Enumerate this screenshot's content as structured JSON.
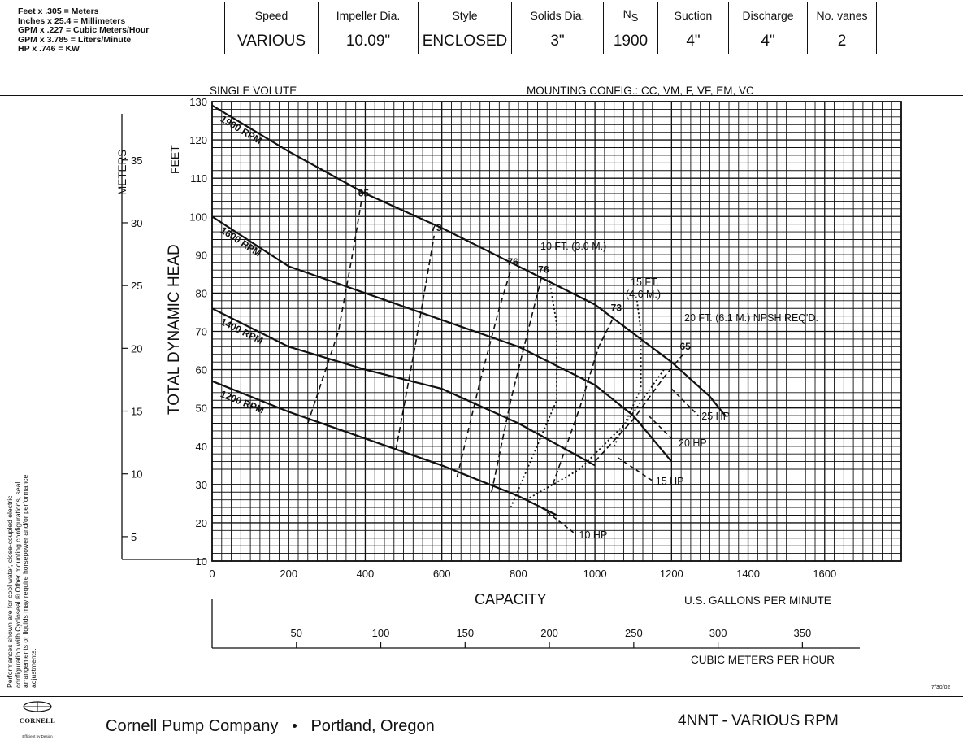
{
  "conversions": [
    "Feet x .305 = Meters",
    "Inches x 25.4 = Millimeters",
    "GPM x .227 = Cubic Meters/Hour",
    "GPM x 3.785 = Liters/Minute",
    "HP x .746 = KW"
  ],
  "spec_table": {
    "headers": [
      "Speed",
      "Impeller Dia.",
      "Style",
      "Solids Dia.",
      "N",
      "Suction",
      "Discharge",
      "No. vanes"
    ],
    "ns_subscript": "S",
    "values": [
      "VARIOUS",
      "10.09\"",
      "ENCLOSED",
      "3\"",
      "1900",
      "4\"",
      "4\"",
      "2"
    ]
  },
  "disclaimer": "Performances shown are for cool water, close-coupled electric configuration with Cycloseal ® Other mounting configurations, seal arrangements or liquids may require horsepower and/or performance adjustments.",
  "date": "7/30/02",
  "footer": {
    "logo_name": "CORNELL",
    "logo_tagline": "Efficient by Design",
    "company": "Cornell Pump Company",
    "location": "Portland, Oregon",
    "model": "4NNT - VARIOUS RPM"
  },
  "chart_data": {
    "type": "line",
    "title_left": "SINGLE VOLUTE",
    "title_right": "MOUNTING CONFIG.:  CC,  VM,  F,  VF,  EM,  VC",
    "xlabel": "CAPACITY",
    "x_units": "U.S. GALLONS PER MINUTE",
    "x2_units": "CUBIC METERS PER HOUR",
    "ylabel": "TOTAL DYNAMIC HEAD",
    "y_units": "FEET",
    "y2_units": "METERS",
    "xlim": [
      0,
      1800
    ],
    "ylim": [
      10,
      130
    ],
    "x_ticks": [
      0,
      200,
      400,
      600,
      800,
      1000,
      1200,
      1400,
      1600
    ],
    "y_ticks": [
      10,
      20,
      30,
      40,
      50,
      60,
      70,
      80,
      90,
      100,
      110,
      120,
      130
    ],
    "x2_ticks": [
      50,
      100,
      150,
      200,
      250,
      300,
      350
    ],
    "y2_ticks": [
      5,
      10,
      15,
      20,
      25,
      30,
      35
    ],
    "grid": true,
    "rpm_curves": [
      {
        "name": "1900 RPM",
        "x": [
          0,
          200,
          400,
          600,
          800,
          1000,
          1200,
          1300,
          1340
        ],
        "y": [
          129,
          117,
          106,
          97,
          87,
          77,
          62,
          53,
          48
        ]
      },
      {
        "name": "1600 RPM",
        "x": [
          0,
          200,
          400,
          600,
          800,
          1000,
          1100,
          1200
        ],
        "y": [
          100,
          87,
          80,
          73,
          66,
          56,
          48,
          36
        ]
      },
      {
        "name": "1400 RPM",
        "x": [
          0,
          200,
          400,
          600,
          800,
          1000
        ],
        "y": [
          76,
          66,
          60,
          55,
          46,
          35
        ]
      },
      {
        "name": "1200 RPM",
        "x": [
          0,
          200,
          400,
          600,
          800,
          900
        ],
        "y": [
          57,
          49,
          42,
          35,
          27,
          22
        ]
      }
    ],
    "efficiency_curves": [
      {
        "label": "65",
        "x": [
          250,
          330,
          370,
          390
        ],
        "y": [
          46,
          70,
          92,
          104
        ]
      },
      {
        "label": "73",
        "x": [
          480,
          530,
          580
        ],
        "y": [
          39,
          66,
          95
        ]
      },
      {
        "label": "76",
        "x": [
          640,
          700,
          750,
          780
        ],
        "y": [
          32,
          57,
          76,
          86
        ]
      },
      {
        "label": "76",
        "x": [
          730,
          780,
          840,
          860
        ],
        "y": [
          28,
          52,
          76,
          84
        ]
      },
      {
        "label": "73",
        "x": [
          890,
          960,
          1010,
          1050
        ],
        "y": [
          30,
          50,
          66,
          74
        ]
      },
      {
        "label": "65",
        "x": [
          1000,
          1100,
          1180,
          1230
        ],
        "y": [
          36,
          47,
          58,
          64
        ]
      }
    ],
    "npsh_curves": [
      {
        "label": "10 FT. (3.0 M.)",
        "x": [
          780,
          900,
          900,
          880
        ],
        "y": [
          24,
          52,
          72,
          84
        ]
      },
      {
        "label": "15 FT. (4.6 M.)",
        "x": [
          1050,
          1120,
          1120,
          1110
        ],
        "y": [
          40,
          55,
          70,
          78
        ]
      },
      {
        "label": "20 FT. (6.1 M.) NPSH REQ'D.",
        "x": [
          820,
          960,
          1080,
          1180
        ],
        "y": [
          26,
          34,
          46,
          60
        ]
      }
    ],
    "hp_lines": [
      {
        "label": "25 HP",
        "x": [
          1200,
          1270
        ],
        "y": [
          55,
          48
        ]
      },
      {
        "label": "20 HP",
        "x": [
          1140,
          1210
        ],
        "y": [
          48,
          41
        ]
      },
      {
        "label": "15 HP",
        "x": [
          1060,
          1150
        ],
        "y": [
          37,
          31
        ]
      },
      {
        "label": "10 HP",
        "x": [
          860,
          950
        ],
        "y": [
          24,
          17
        ]
      }
    ]
  }
}
